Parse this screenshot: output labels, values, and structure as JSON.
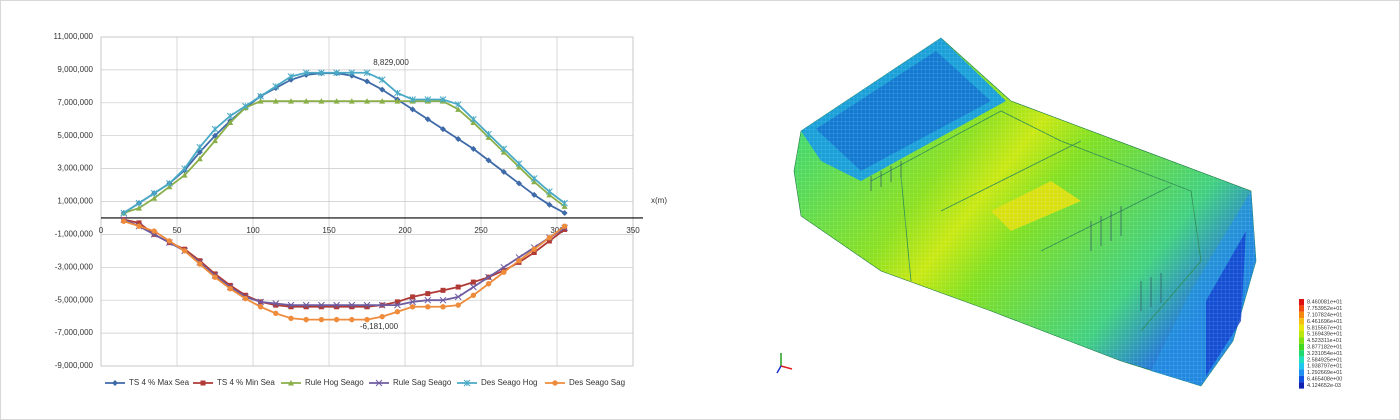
{
  "chart_data": {
    "type": "line",
    "x": [
      15,
      25,
      35,
      45,
      55,
      65,
      75,
      85,
      95,
      105,
      115,
      125,
      135,
      145,
      155,
      165,
      175,
      185,
      195,
      205,
      215,
      225,
      235,
      245,
      255,
      265,
      275,
      285,
      295,
      305
    ],
    "x_label": "x(m)",
    "xlim": [
      0,
      350
    ],
    "xticks": [
      0,
      50,
      100,
      150,
      200,
      250,
      300,
      350
    ],
    "ylim": [
      -9000000,
      11000000
    ],
    "yticks": [
      {
        "value": -9000000,
        "label": "-9,000,000"
      },
      {
        "value": -7000000,
        "label": "-7,000,000"
      },
      {
        "value": -5000000,
        "label": "-5,000,000"
      },
      {
        "value": -3000000,
        "label": "-3,000,000"
      },
      {
        "value": -1000000,
        "label": "-1,000,000"
      },
      {
        "value": 1000000,
        "label": "1,000,000"
      },
      {
        "value": 3000000,
        "label": "3,000,000"
      },
      {
        "value": 5000000,
        "label": "5,000,000"
      },
      {
        "value": 7000000,
        "label": "7,000,000"
      },
      {
        "value": 9000000,
        "label": "9,000,000"
      },
      {
        "value": 11000000,
        "label": "11,000,000"
      }
    ],
    "grid": true,
    "annotations": [
      "8,829,000",
      "-6,181,000"
    ],
    "series": [
      {
        "name": "TS 4 % Max Sea",
        "color": "#3e6aa8",
        "marker": "diamond",
        "values": [
          300000,
          900000,
          1500000,
          2100000,
          2900000,
          4000000,
          5000000,
          5900000,
          6700000,
          7400000,
          7900000,
          8400000,
          8700000,
          8800000,
          8800000,
          8650000,
          8300000,
          7800000,
          7200000,
          6600000,
          6000000,
          5400000,
          4800000,
          4200000,
          3500000,
          2800000,
          2100000,
          1400000,
          800000,
          300000
        ]
      },
      {
        "name": "TS 4 % Min Sea",
        "color": "#b03a36",
        "marker": "square",
        "values": [
          -100000,
          -300000,
          -1000000,
          -1500000,
          -1900000,
          -2600000,
          -3400000,
          -4100000,
          -4700000,
          -5100000,
          -5300000,
          -5400000,
          -5400000,
          -5400000,
          -5400000,
          -5400000,
          -5400000,
          -5300000,
          -5100000,
          -4800000,
          -4600000,
          -4400000,
          -4200000,
          -3900000,
          -3600000,
          -3200000,
          -2700000,
          -2100000,
          -1400000,
          -700000
        ]
      },
      {
        "name": "Rule Hog Seago",
        "color": "#8aaf48",
        "marker": "triangle",
        "values": [
          300000,
          600000,
          1200000,
          1900000,
          2600000,
          3600000,
          4700000,
          5800000,
          6700000,
          7100000,
          7100000,
          7100000,
          7100000,
          7100000,
          7100000,
          7100000,
          7100000,
          7100000,
          7100000,
          7100000,
          7100000,
          7100000,
          6600000,
          5800000,
          4900000,
          4000000,
          3100000,
          2200000,
          1400000,
          700000
        ]
      },
      {
        "name": "Rule Sag Seago",
        "color": "#6e5ba0",
        "marker": "x",
        "values": [
          -100000,
          -500000,
          -1000000,
          -1500000,
          -2000000,
          -2700000,
          -3500000,
          -4200000,
          -4800000,
          -5100000,
          -5200000,
          -5300000,
          -5300000,
          -5300000,
          -5300000,
          -5300000,
          -5300000,
          -5300000,
          -5300000,
          -5100000,
          -5000000,
          -5000000,
          -4800000,
          -4200000,
          -3600000,
          -3000000,
          -2400000,
          -1800000,
          -1200000,
          -600000
        ]
      },
      {
        "name": "Des Seago Hog",
        "color": "#4aaac6",
        "marker": "star",
        "values": [
          300000,
          900000,
          1500000,
          2100000,
          3000000,
          4300000,
          5400000,
          6200000,
          6800000,
          7400000,
          8000000,
          8600000,
          8829000,
          8829000,
          8829000,
          8829000,
          8829000,
          8400000,
          7600000,
          7200000,
          7200000,
          7200000,
          6900000,
          6000000,
          5100000,
          4200000,
          3300000,
          2400000,
          1600000,
          900000
        ]
      },
      {
        "name": "Des Seago Sag",
        "color": "#ef8c3c",
        "marker": "circle",
        "values": [
          -200000,
          -500000,
          -800000,
          -1400000,
          -2000000,
          -2800000,
          -3600000,
          -4300000,
          -4900000,
          -5400000,
          -5800000,
          -6100000,
          -6181000,
          -6181000,
          -6181000,
          -6181000,
          -6181000,
          -6000000,
          -5700000,
          -5400000,
          -5400000,
          -5400000,
          -5300000,
          -4700000,
          -4000000,
          -3300000,
          -2600000,
          -1900000,
          -1200000,
          -500000
        ]
      }
    ]
  },
  "fem_view": {
    "legend": {
      "labels": [
        "8.460081e+01",
        "7.753952e+01",
        "7.107824e+01",
        "6.461696e+01",
        "5.815567e+01",
        "5.169439e+01",
        "4.523311e+01",
        "3.877182e+01",
        "3.231054e+01",
        "2.584925e+01",
        "1.938797e+01",
        "1.292669e+01",
        "6.465408e+00",
        "4.124652e-03"
      ],
      "colors": [
        "#e01010",
        "#f04a10",
        "#f58a10",
        "#f5c010",
        "#e8e810",
        "#b8e810",
        "#80e010",
        "#40d820",
        "#20d870",
        "#20e0c0",
        "#20c8f0",
        "#2090f0",
        "#1050e0",
        "#1020b0"
      ]
    }
  }
}
